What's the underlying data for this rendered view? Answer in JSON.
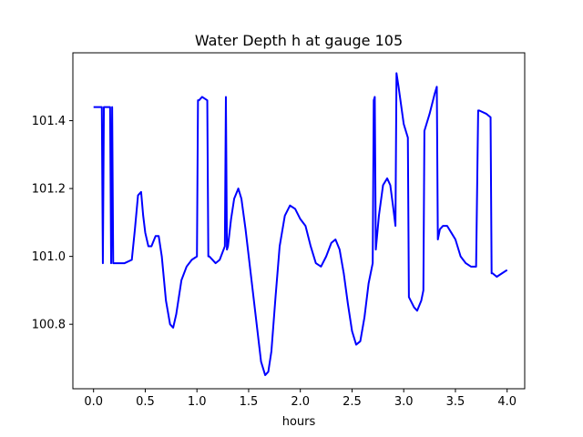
{
  "chart_data": {
    "type": "line",
    "title": "Water Depth h at gauge 105",
    "xlabel": "hours",
    "ylabel": "",
    "xlim": [
      -0.2,
      4.17
    ],
    "ylim": [
      100.61,
      101.6
    ],
    "xticks": [
      0.0,
      0.5,
      1.0,
      1.5,
      2.0,
      2.5,
      3.0,
      3.5,
      4.0
    ],
    "xtick_labels": [
      "0.0",
      "0.5",
      "1.0",
      "1.5",
      "2.0",
      "2.5",
      "3.0",
      "3.5",
      "4.0"
    ],
    "yticks": [
      100.8,
      101.0,
      101.2,
      101.4
    ],
    "ytick_labels": [
      "100.8",
      "101.0",
      "101.2",
      "101.4"
    ],
    "grid": false,
    "legend": "none",
    "series": [
      {
        "color": "#0000ff",
        "x": [
          0.0,
          0.07,
          0.08,
          0.09,
          0.1,
          0.15,
          0.16,
          0.17,
          0.18,
          0.19,
          0.2,
          0.3,
          0.37,
          0.4,
          0.43,
          0.46,
          0.48,
          0.5,
          0.53,
          0.56,
          0.6,
          0.63,
          0.66,
          0.7,
          0.74,
          0.77,
          0.8,
          0.85,
          0.9,
          0.95,
          1.0,
          1.01,
          1.02,
          1.05,
          1.1,
          1.11,
          1.12,
          1.15,
          1.18,
          1.22,
          1.27,
          1.28,
          1.29,
          1.3,
          1.33,
          1.36,
          1.4,
          1.43,
          1.47,
          1.52,
          1.57,
          1.62,
          1.66,
          1.69,
          1.72,
          1.76,
          1.8,
          1.85,
          1.9,
          1.95,
          2.0,
          2.05,
          2.1,
          2.15,
          2.2,
          2.25,
          2.3,
          2.34,
          2.38,
          2.42,
          2.46,
          2.5,
          2.54,
          2.58,
          2.62,
          2.66,
          2.7,
          2.71,
          2.72,
          2.73,
          2.76,
          2.8,
          2.84,
          2.87,
          2.9,
          2.92,
          2.93,
          2.95,
          3.0,
          3.04,
          3.05,
          3.1,
          3.13,
          3.17,
          3.19,
          3.2,
          3.25,
          3.3,
          3.32,
          3.33,
          3.35,
          3.38,
          3.42,
          3.46,
          3.5,
          3.55,
          3.6,
          3.65,
          3.7,
          3.72,
          3.73,
          3.8,
          3.84,
          3.85,
          3.86,
          3.9,
          3.95,
          4.0
        ],
        "y": [
          101.44,
          101.44,
          101.44,
          100.98,
          101.44,
          101.44,
          101.44,
          100.98,
          101.44,
          100.98,
          100.98,
          100.98,
          100.99,
          101.08,
          101.18,
          101.19,
          101.12,
          101.07,
          101.03,
          101.03,
          101.06,
          101.06,
          101.0,
          100.87,
          100.8,
          100.79,
          100.83,
          100.93,
          100.97,
          100.99,
          101.0,
          101.46,
          101.46,
          101.47,
          101.46,
          101.0,
          101.0,
          100.99,
          100.98,
          100.99,
          101.03,
          101.47,
          101.02,
          101.03,
          101.11,
          101.17,
          101.2,
          101.17,
          101.08,
          100.95,
          100.82,
          100.69,
          100.65,
          100.66,
          100.72,
          100.88,
          101.03,
          101.12,
          101.15,
          101.14,
          101.11,
          101.09,
          101.03,
          100.98,
          100.97,
          101.0,
          101.04,
          101.05,
          101.02,
          100.95,
          100.86,
          100.78,
          100.74,
          100.75,
          100.82,
          100.92,
          100.98,
          101.46,
          101.47,
          101.02,
          101.12,
          101.21,
          101.23,
          101.21,
          101.14,
          101.09,
          101.54,
          101.5,
          101.39,
          101.35,
          100.88,
          100.85,
          100.84,
          100.87,
          100.9,
          101.37,
          101.42,
          101.48,
          101.5,
          101.05,
          101.08,
          101.09,
          101.09,
          101.07,
          101.05,
          101.0,
          100.98,
          100.97,
          100.97,
          101.43,
          101.43,
          101.42,
          101.41,
          100.95,
          100.95,
          100.94,
          100.95,
          100.96
        ]
      }
    ]
  }
}
